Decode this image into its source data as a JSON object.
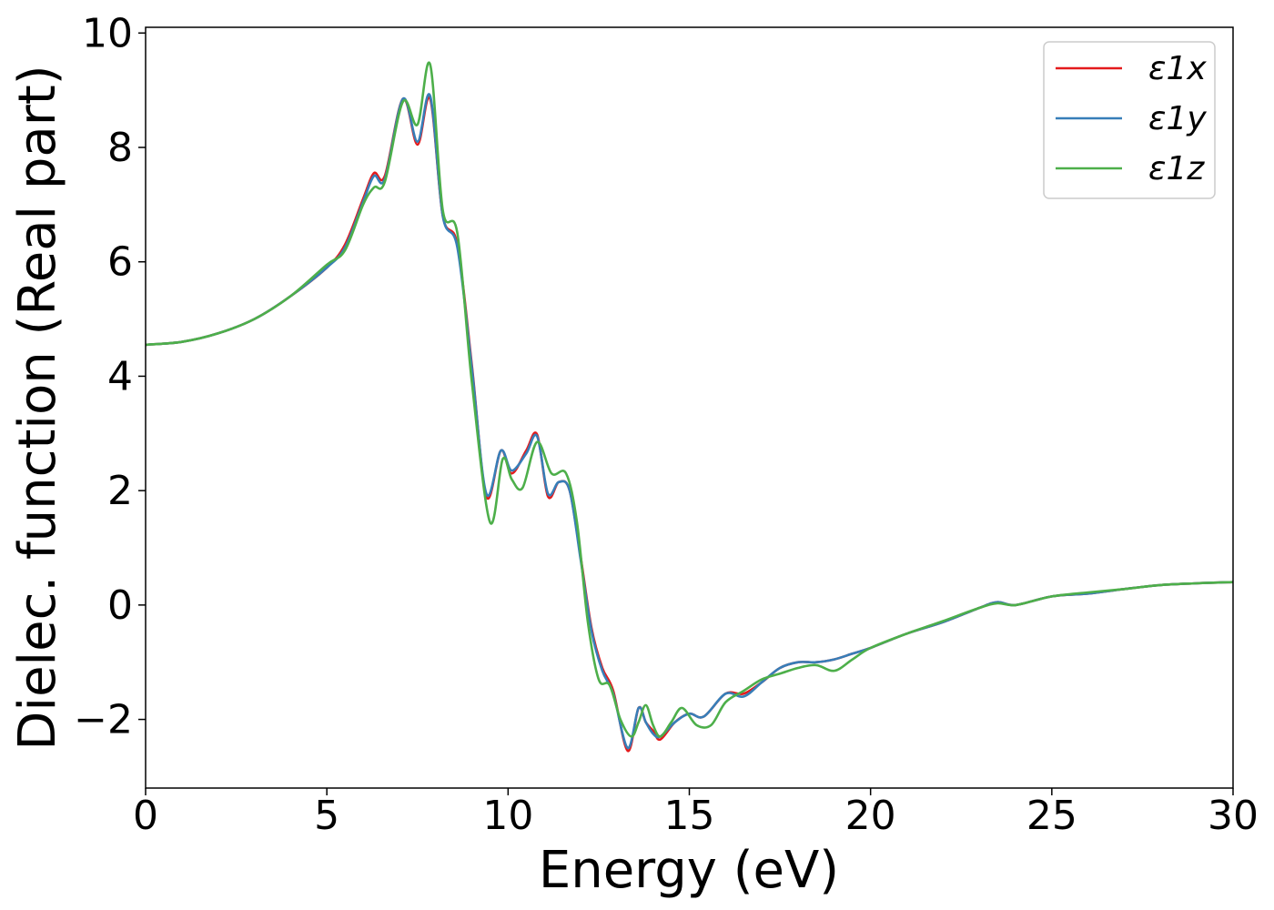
{
  "chart_data": {
    "type": "line",
    "title": "",
    "xlabel": "Energy (eV)",
    "ylabel": "Dielec. function (Real part)",
    "xlim": [
      0,
      30
    ],
    "ylim": [
      -3.2,
      10.1
    ],
    "xticks": [
      0,
      5,
      10,
      15,
      20,
      25,
      30
    ],
    "xtick_labels": [
      "0",
      "5",
      "10",
      "15",
      "20",
      "25",
      "30"
    ],
    "yticks": [
      -2,
      0,
      2,
      4,
      6,
      8,
      10
    ],
    "ytick_labels": [
      "−2",
      "0",
      "2",
      "4",
      "6",
      "8",
      "10"
    ],
    "grid": false,
    "legend_position": "top-right",
    "series": [
      {
        "name": "ε1x",
        "color": "#e41a1c",
        "x": [
          0,
          1,
          2,
          3,
          4,
          5,
          5.5,
          6,
          6.3,
          6.6,
          7.1,
          7.5,
          7.85,
          8.2,
          8.6,
          9.0,
          9.4,
          9.8,
          10.1,
          10.5,
          10.8,
          11.1,
          11.4,
          11.7,
          12.0,
          12.3,
          12.6,
          12.9,
          13.3,
          13.6,
          13.8,
          14.0,
          14.2,
          14.6,
          15.0,
          15.4,
          16.0,
          16.5,
          17.0,
          17.5,
          18.0,
          18.5,
          19.0,
          19.5,
          20.0,
          21.0,
          22.0,
          23.0,
          23.5,
          24.0,
          25.0,
          26.0,
          27.0,
          28.0,
          29.0,
          30.0
        ],
        "y": [
          4.55,
          4.6,
          4.75,
          5.0,
          5.4,
          5.9,
          6.3,
          7.1,
          7.55,
          7.5,
          8.85,
          8.05,
          8.85,
          6.8,
          6.3,
          4.2,
          1.9,
          2.7,
          2.3,
          2.7,
          2.98,
          1.9,
          2.15,
          2.0,
          0.85,
          -0.4,
          -1.1,
          -1.5,
          -2.55,
          -1.8,
          -2.05,
          -2.2,
          -2.35,
          -2.05,
          -1.9,
          -1.95,
          -1.55,
          -1.55,
          -1.35,
          -1.1,
          -1.0,
          -1.0,
          -0.95,
          -0.85,
          -0.75,
          -0.5,
          -0.3,
          -0.05,
          0.05,
          0.0,
          0.15,
          0.2,
          0.28,
          0.35,
          0.38,
          0.4
        ]
      },
      {
        "name": "ε1y",
        "color": "#377eb8",
        "x": [
          0,
          1,
          2,
          3,
          4,
          5,
          5.5,
          6,
          6.3,
          6.6,
          7.1,
          7.5,
          7.85,
          8.2,
          8.6,
          9.0,
          9.4,
          9.8,
          10.1,
          10.5,
          10.8,
          11.1,
          11.4,
          11.7,
          12.0,
          12.3,
          12.6,
          12.9,
          13.3,
          13.6,
          13.8,
          14.0,
          14.2,
          14.6,
          15.0,
          15.4,
          16.0,
          16.5,
          17.0,
          17.5,
          18.0,
          18.5,
          19.0,
          19.5,
          20.0,
          21.0,
          22.0,
          23.0,
          23.5,
          24.0,
          25.0,
          26.0,
          27.0,
          28.0,
          29.0,
          30.0
        ],
        "y": [
          4.55,
          4.6,
          4.75,
          5.0,
          5.4,
          5.9,
          6.25,
          7.05,
          7.5,
          7.45,
          8.85,
          8.1,
          8.9,
          6.8,
          6.25,
          4.15,
          1.95,
          2.7,
          2.35,
          2.65,
          2.95,
          1.95,
          2.15,
          2.0,
          0.8,
          -0.45,
          -1.15,
          -1.55,
          -2.5,
          -1.8,
          -2.05,
          -2.25,
          -2.3,
          -2.05,
          -1.9,
          -1.95,
          -1.55,
          -1.6,
          -1.35,
          -1.1,
          -1.0,
          -1.0,
          -0.95,
          -0.85,
          -0.75,
          -0.5,
          -0.3,
          -0.05,
          0.05,
          0.0,
          0.15,
          0.2,
          0.28,
          0.35,
          0.38,
          0.4
        ]
      },
      {
        "name": "ε1z",
        "color": "#4daf4a",
        "x": [
          0,
          1,
          2,
          3,
          4,
          5,
          5.5,
          6,
          6.3,
          6.6,
          7.1,
          7.5,
          7.85,
          8.2,
          8.6,
          9.0,
          9.5,
          9.85,
          10.1,
          10.4,
          10.8,
          11.2,
          11.6,
          11.9,
          12.2,
          12.5,
          12.8,
          13.1,
          13.4,
          13.6,
          13.8,
          14.0,
          14.2,
          14.5,
          14.8,
          15.2,
          15.6,
          16.0,
          16.5,
          17.0,
          17.5,
          18.0,
          18.5,
          19.0,
          19.5,
          20.0,
          21.0,
          22.0,
          23.0,
          23.5,
          24.0,
          25.0,
          26.0,
          27.0,
          28.0,
          29.0,
          30.0
        ],
        "y": [
          4.55,
          4.6,
          4.75,
          5.0,
          5.4,
          5.95,
          6.2,
          7.0,
          7.3,
          7.4,
          8.8,
          8.4,
          9.45,
          6.9,
          6.5,
          3.9,
          1.45,
          2.55,
          2.2,
          2.05,
          2.85,
          2.3,
          2.3,
          1.45,
          -0.3,
          -1.3,
          -1.4,
          -2.0,
          -2.3,
          -2.05,
          -1.75,
          -2.1,
          -2.3,
          -2.05,
          -1.8,
          -2.1,
          -2.1,
          -1.7,
          -1.5,
          -1.3,
          -1.2,
          -1.1,
          -1.05,
          -1.15,
          -0.95,
          -0.75,
          -0.5,
          -0.28,
          -0.05,
          0.03,
          0.0,
          0.15,
          0.22,
          0.28,
          0.35,
          0.38,
          0.4
        ]
      }
    ]
  }
}
